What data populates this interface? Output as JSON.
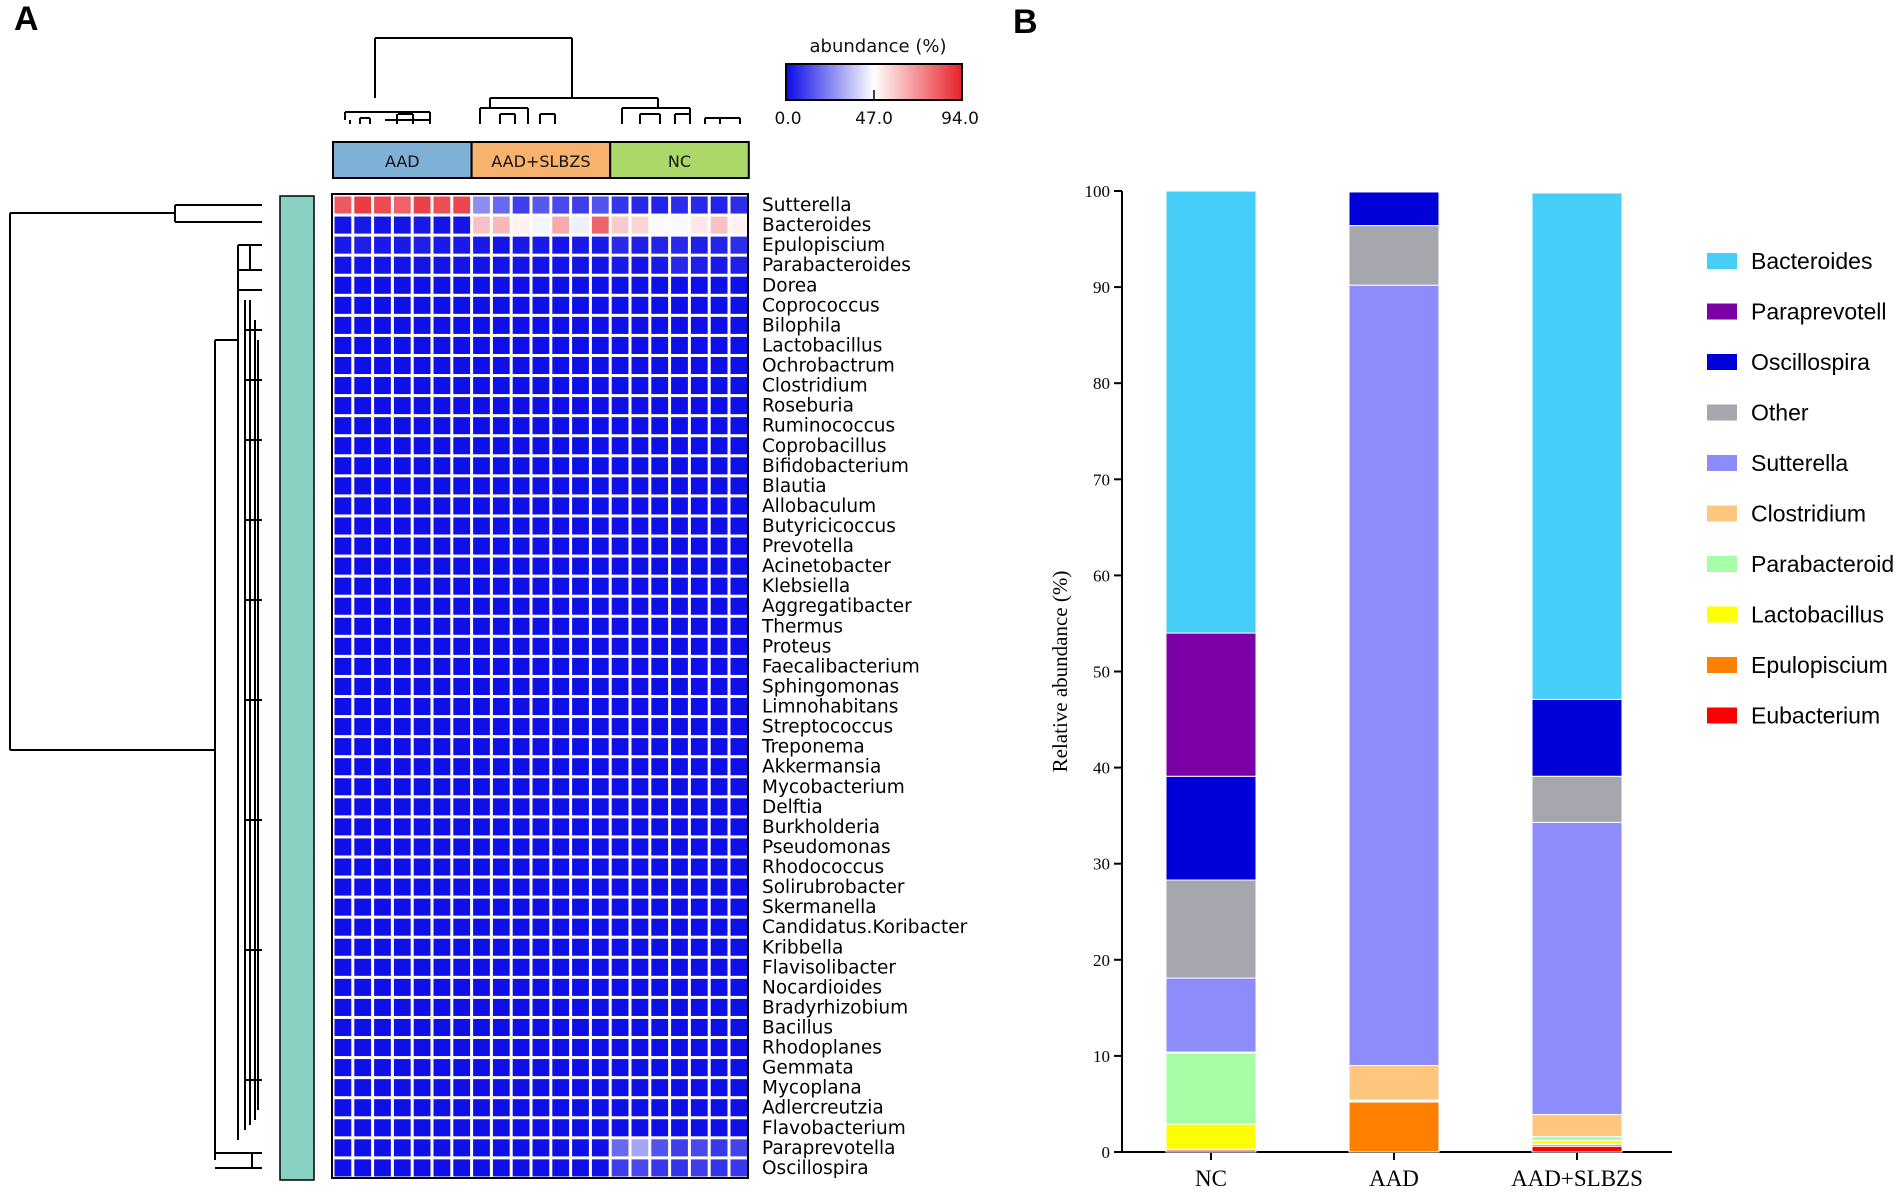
{
  "panels": {
    "a": "A",
    "b": "B"
  },
  "heatmap": {
    "colorbar_title": "abundance (%)",
    "colorbar_ticks": [
      "0.0",
      "47.0",
      "94.0"
    ],
    "colorbar_colors": [
      "#0a0ae6",
      "#ffffff",
      "#e8202a"
    ],
    "groups": [
      {
        "label": "AAD",
        "color": "#7fb0d6",
        "count": 7
      },
      {
        "label": "AAD+SLBZS",
        "color": "#f7b36d",
        "count": 7
      },
      {
        "label": "NC",
        "color": "#acd86a",
        "count": 7
      }
    ],
    "row_bar_color": "#88d1c3",
    "rows": [
      "Sutterella",
      "Bacteroides",
      "Epulopiscium",
      "Parabacteroides",
      "Dorea",
      "Coprococcus",
      "Bilophila",
      "Lactobacillus",
      "Ochrobactrum",
      "Clostridium",
      "Roseburia",
      "Ruminococcus",
      "Coprobacillus",
      "Bifidobacterium",
      "Blautia",
      "Allobaculum",
      "Butyricicoccus",
      "Prevotella",
      "Acinetobacter",
      "Klebsiella",
      "Aggregatibacter",
      "Thermus",
      "Proteus",
      "Faecalibacterium",
      "Sphingomonas",
      "Limnohabitans",
      "Streptococcus",
      "Treponema",
      "Akkermansia",
      "Mycobacterium",
      "Delftia",
      "Burkholderia",
      "Pseudomonas",
      "Rhodococcus",
      "Solirubrobacter",
      "Skermanella",
      "Candidatus.Koribacter",
      "Kribbella",
      "Flavisolibacter",
      "Nocardioides",
      "Bradyrhizobium",
      "Bacillus",
      "Rhodoplanes",
      "Gemmata",
      "Mycoplana",
      "Adlercreutzia",
      "Flavobacterium",
      "Paraprevotella",
      "Oscillospira"
    ],
    "values": {
      "Sutterella": [
        82,
        88,
        85,
        80,
        87,
        84,
        86,
        25,
        18,
        10,
        15,
        12,
        10,
        14,
        8,
        6,
        5,
        7,
        6,
        5,
        7
      ],
      "Bacteroides": [
        2,
        3,
        2,
        2,
        3,
        2,
        2,
        60,
        62,
        50,
        45,
        65,
        44,
        80,
        58,
        56,
        48,
        46,
        52,
        60,
        50
      ],
      "Epulopiscium": [
        3,
        4,
        3,
        3,
        4,
        3,
        3,
        3,
        2,
        3,
        3,
        2,
        3,
        3,
        6,
        4,
        5,
        6,
        4,
        5,
        7
      ],
      "Parabacteroides": [
        2,
        2,
        2,
        2,
        2,
        2,
        2,
        2,
        2,
        2,
        2,
        2,
        2,
        2,
        3,
        2,
        3,
        6,
        4,
        3,
        4
      ],
      "Paraprevotella": [
        1,
        1,
        1,
        1,
        1,
        1,
        1,
        1,
        1,
        1,
        1,
        1,
        1,
        1,
        18,
        30,
        14,
        10,
        12,
        9,
        11
      ],
      "Oscillospira": [
        1,
        1,
        1,
        1,
        1,
        1,
        1,
        1,
        1,
        1,
        1,
        1,
        1,
        1,
        10,
        12,
        9,
        8,
        10,
        8,
        9
      ],
      "default": 1
    }
  },
  "chart_data": {
    "type": "bar",
    "stacked": true,
    "categories": [
      "NC",
      "AAD",
      "AAD+SLBZS"
    ],
    "ylabel": "Relative abundance (%)",
    "xlabel": "",
    "ylim": [
      0,
      100
    ],
    "yticks": [
      0,
      10,
      20,
      30,
      40,
      50,
      60,
      70,
      80,
      90,
      100
    ],
    "legend_position": "right",
    "series": [
      {
        "name": "Eubacterium",
        "color": "#ff0000",
        "values": [
          0.2,
          0.0,
          0.6
        ]
      },
      {
        "name": "Epulopiscium",
        "color": "#ff7f00",
        "values": [
          0.1,
          5.2,
          0.2
        ]
      },
      {
        "name": "Lactobacillus",
        "color": "#ffff00",
        "values": [
          2.6,
          0.1,
          0.4
        ]
      },
      {
        "name": "Parabacteroid",
        "color": "#a6ffa6",
        "values": [
          7.4,
          0.1,
          0.4
        ]
      },
      {
        "name": "Clostridium",
        "color": "#ffc680",
        "values": [
          0.1,
          3.6,
          2.3
        ]
      },
      {
        "name": "Sutterella",
        "color": "#8c8cfc",
        "values": [
          7.7,
          81.2,
          30.4
        ]
      },
      {
        "name": "Other",
        "color": "#a6a6ae",
        "values": [
          10.2,
          6.2,
          4.8
        ]
      },
      {
        "name": "Oscillospira",
        "color": "#0000d8",
        "values": [
          10.8,
          3.5,
          8.0
        ]
      },
      {
        "name": "Paraprevotell",
        "color": "#7b00a6",
        "values": [
          14.9,
          0.0,
          0.0
        ]
      },
      {
        "name": "Bacteroides",
        "color": "#45cff8",
        "values": [
          46.0,
          0.0,
          52.7
        ]
      }
    ],
    "legend_order": [
      "Bacteroides",
      "Paraprevotell",
      "Oscillospira",
      "Other",
      "Sutterella",
      "Clostridium",
      "Parabacteroid",
      "Lactobacillus",
      "Epulopiscium",
      "Eubacterium"
    ]
  }
}
